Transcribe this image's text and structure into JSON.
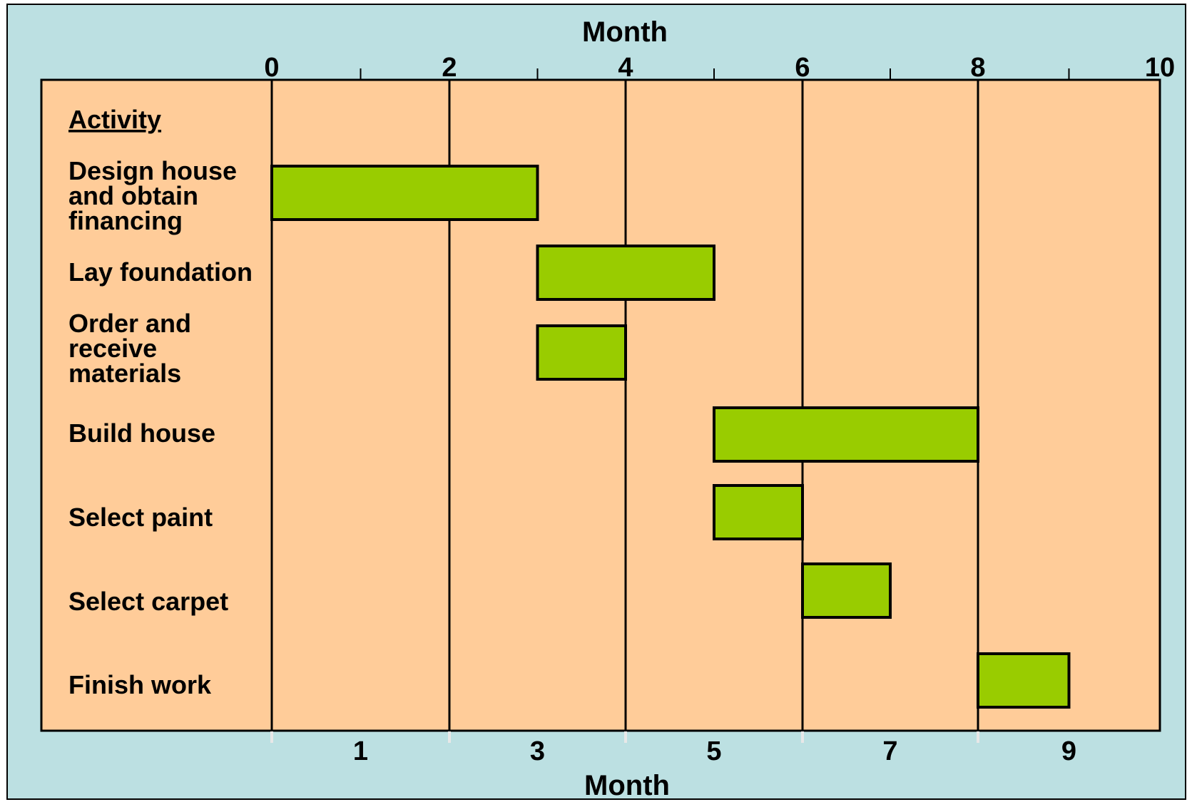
{
  "chart_data": {
    "type": "gantt",
    "top_axis_label": "Month",
    "bottom_axis_label": "Month",
    "top_tick_labels": [
      "0",
      "2",
      "4",
      "6",
      "8",
      "10"
    ],
    "bottom_tick_labels": [
      "1",
      "3",
      "5",
      "7",
      "9"
    ],
    "column_header": "Activity",
    "grid": true,
    "colors": {
      "outer_background": "#bce0e2",
      "plot_background": "#ffcc99",
      "bar_fill": "#99cc00",
      "bar_stroke": "#000000"
    },
    "tasks": [
      {
        "label": "Design house and obtain financing",
        "lines": [
          "Design house",
          "and obtain",
          "financing"
        ],
        "start_month": 0,
        "end_month": 3
      },
      {
        "label": "Lay foundation",
        "lines": [
          "Lay foundation"
        ],
        "start_month": 3,
        "end_month": 5
      },
      {
        "label": "Order and receive materials",
        "lines": [
          "Order and",
          "receive",
          "materials"
        ],
        "start_month": 3,
        "end_month": 4
      },
      {
        "label": "Build house",
        "lines": [
          "Build house"
        ],
        "start_month": 5,
        "end_month": 8
      },
      {
        "label": "Select paint",
        "lines": [
          "Select paint"
        ],
        "start_month": 5,
        "end_month": 6
      },
      {
        "label": "Select carpet",
        "lines": [
          "Select carpet"
        ],
        "start_month": 6,
        "end_month": 7
      },
      {
        "label": "Finish work",
        "lines": [
          "Finish work"
        ],
        "start_month": 8,
        "end_month": 9
      }
    ]
  }
}
